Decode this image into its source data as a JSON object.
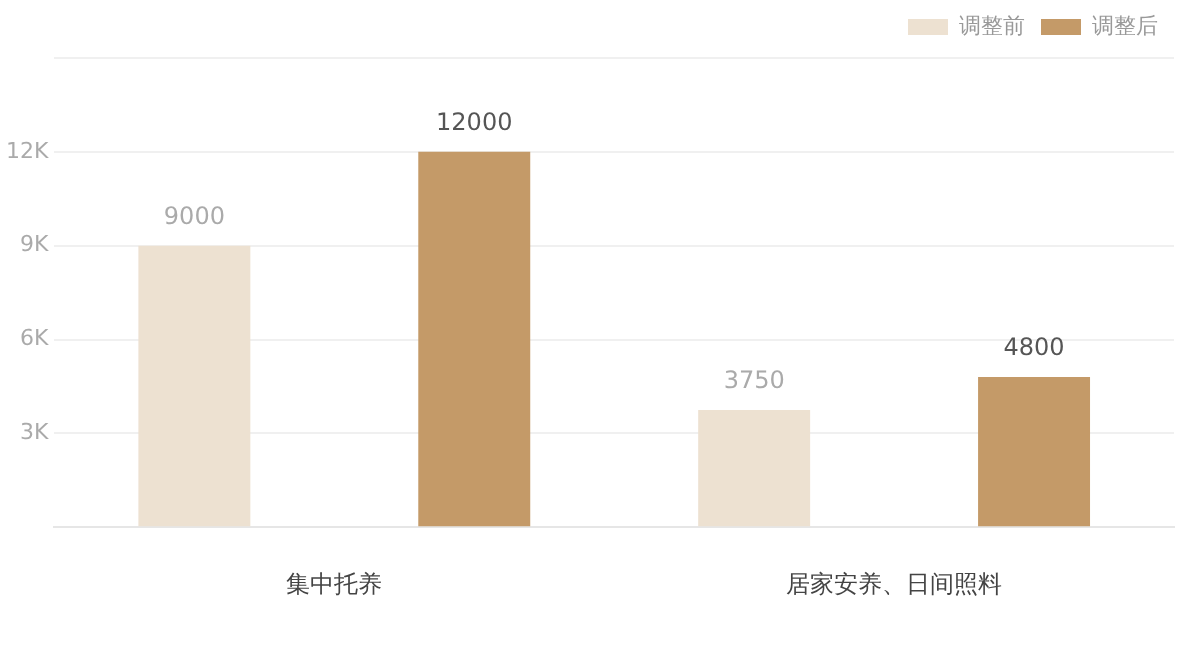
{
  "chart_data": {
    "type": "bar",
    "categories": [
      "集中托养",
      "居家安养、日间照料"
    ],
    "series": [
      {
        "name": "调整前",
        "color": "#ede1d1",
        "values": [
          9000,
          3750
        ]
      },
      {
        "name": "调整后",
        "color": "#c49a68",
        "values": [
          12000,
          4800
        ]
      }
    ],
    "ylim": [
      0,
      15000
    ],
    "yticks": [
      {
        "value": 0,
        "label": null
      },
      {
        "value": 3000,
        "label": "3K"
      },
      {
        "value": 6000,
        "label": "6K"
      },
      {
        "value": 9000,
        "label": "9K"
      },
      {
        "value": 12000,
        "label": "12K"
      },
      {
        "value": 15000,
        "label": null
      }
    ],
    "grid": "y",
    "legend": "top right",
    "data_labels": true
  }
}
